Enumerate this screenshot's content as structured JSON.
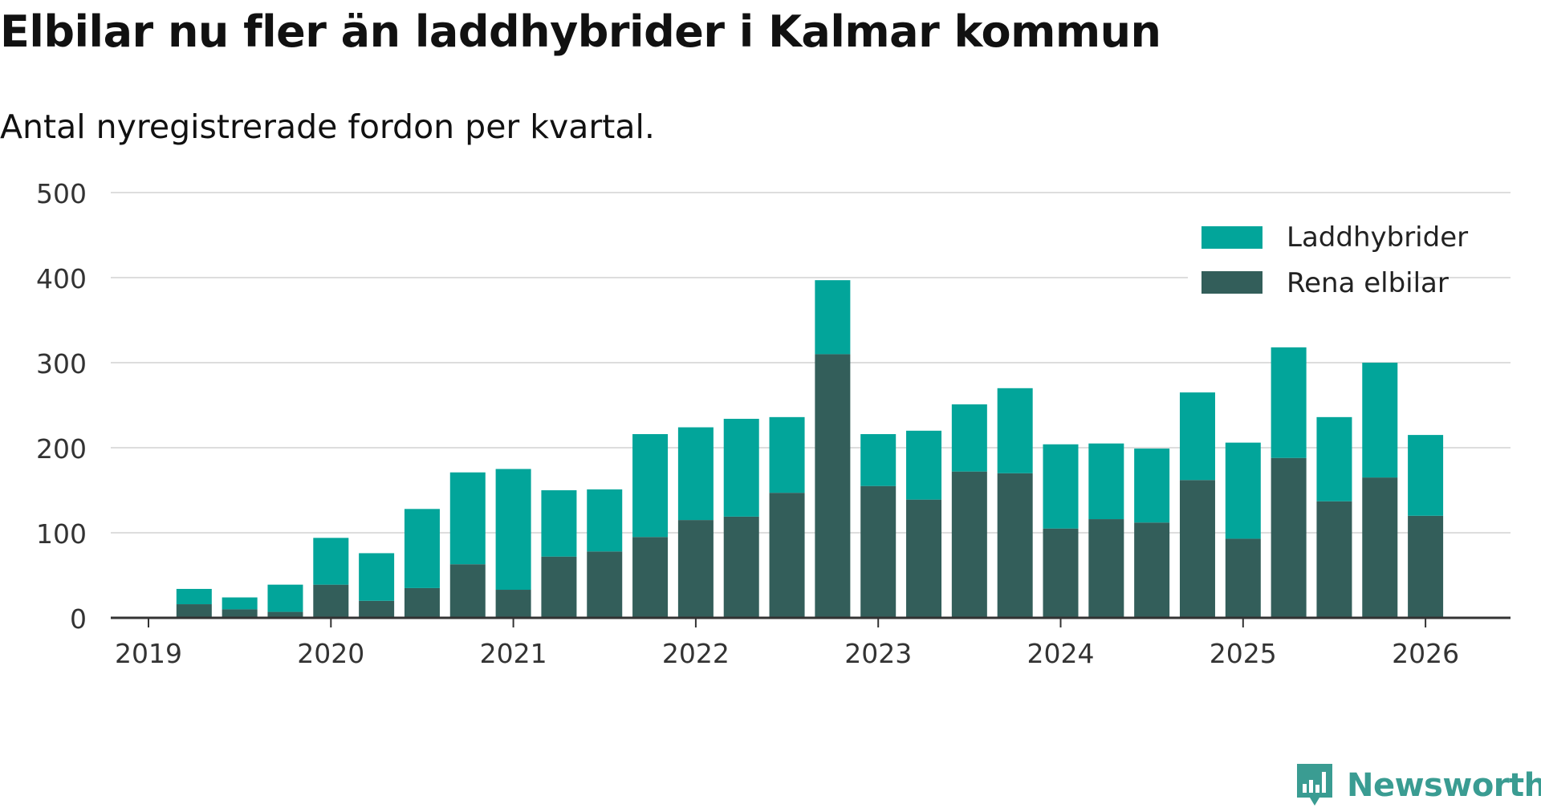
{
  "title": "Elbilar nu fler än laddhybrider i Kalmar kommun",
  "subtitle": "Antal nyregistrerade fordon per kvartal.",
  "brand": "Newsworthy",
  "colors": {
    "laddhybrider": "#02a59a",
    "rena_elbilar": "#335e5a",
    "grid": "#dddddd",
    "axis": "#333333"
  },
  "chart_data": {
    "type": "bar",
    "stacked": true,
    "x_ticks": [
      "2019",
      "2020",
      "2021",
      "2022",
      "2023",
      "2024",
      "2025",
      "2026"
    ],
    "y_ticks": [
      "0",
      "100",
      "200",
      "300",
      "400",
      "500"
    ],
    "ylim": [
      0,
      500
    ],
    "grid": true,
    "legend_position": "top-right",
    "categories": [
      "2019-Q2",
      "2019-Q3",
      "2019-Q4",
      "2020-Q1",
      "2020-Q2",
      "2020-Q3",
      "2020-Q4",
      "2021-Q1",
      "2021-Q2",
      "2021-Q3",
      "2021-Q4",
      "2022-Q1",
      "2022-Q2",
      "2022-Q3",
      "2022-Q4",
      "2023-Q1",
      "2023-Q2",
      "2023-Q3",
      "2023-Q4",
      "2024-Q1",
      "2024-Q2",
      "2024-Q3",
      "2024-Q4",
      "2025-Q1",
      "2025-Q2",
      "2025-Q3",
      "2025-Q4",
      "2026-Q1"
    ],
    "series": [
      {
        "name": "Rena elbilar",
        "values": [
          16,
          10,
          7,
          39,
          20,
          35,
          63,
          33,
          72,
          78,
          95,
          115,
          119,
          147,
          310,
          155,
          139,
          172,
          170,
          105,
          116,
          112,
          162,
          93,
          188,
          137,
          165,
          120
        ]
      },
      {
        "name": "Laddhybrider",
        "values": [
          18,
          14,
          32,
          55,
          56,
          93,
          108,
          142,
          78,
          73,
          121,
          109,
          115,
          89,
          87,
          61,
          81,
          79,
          100,
          99,
          89,
          87,
          103,
          113,
          130,
          99,
          135,
          95
        ]
      }
    ]
  }
}
